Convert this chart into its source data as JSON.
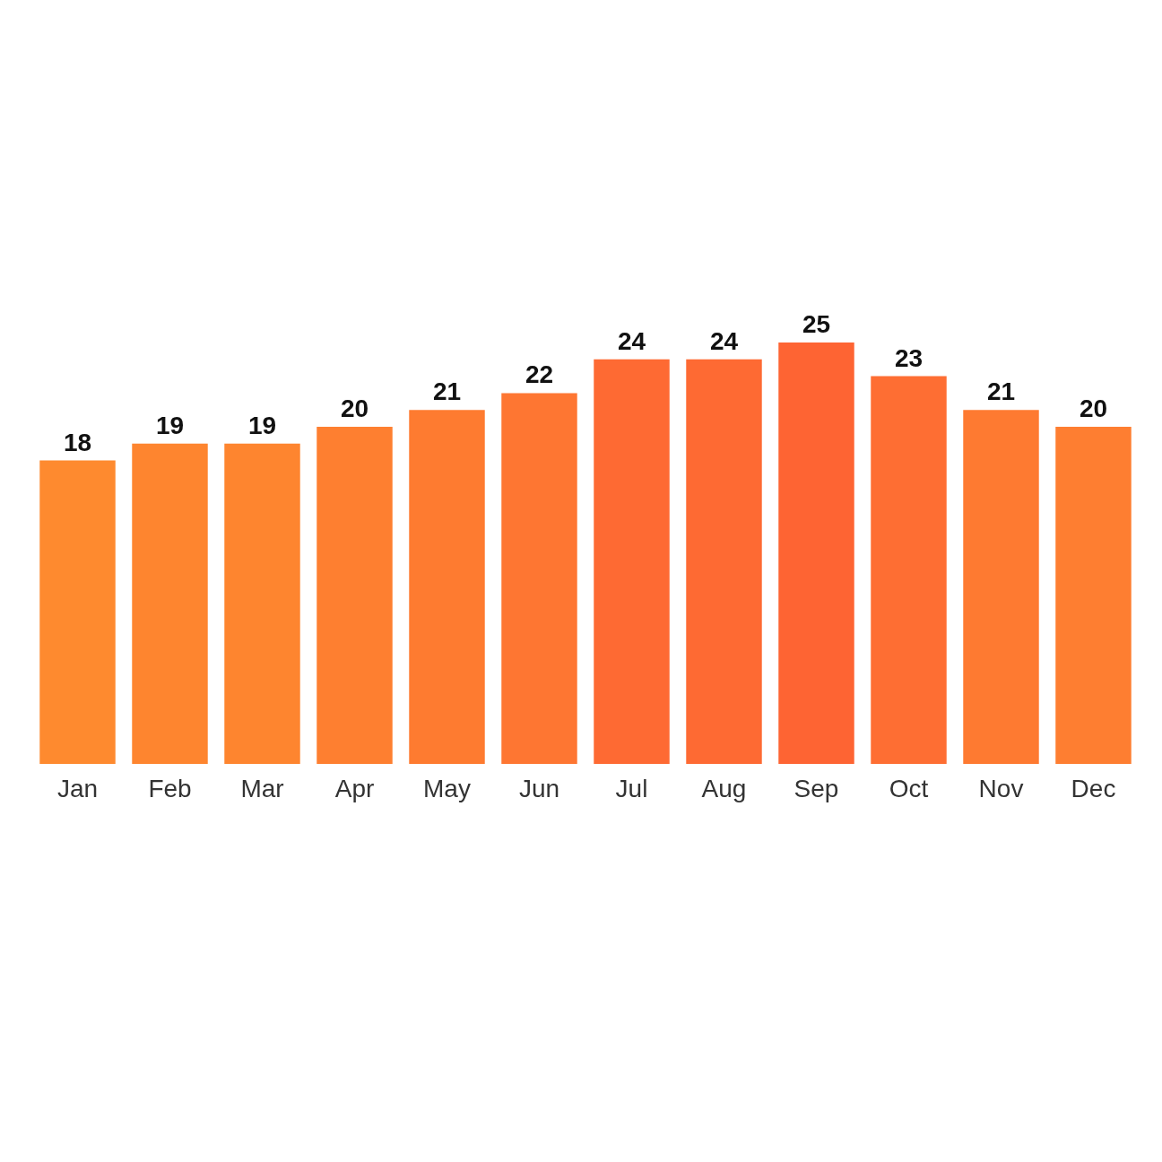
{
  "chart_data": {
    "type": "bar",
    "categories": [
      "Jan",
      "Feb",
      "Mar",
      "Apr",
      "May",
      "Jun",
      "Jul",
      "Aug",
      "Sep",
      "Oct",
      "Nov",
      "Dec"
    ],
    "values": [
      18,
      19,
      19,
      20,
      21,
      22,
      24,
      24,
      25,
      23,
      21,
      20
    ],
    "colors": [
      "#fe8a2f",
      "#fe852f",
      "#fe852f",
      "#fe7f30",
      "#fe7b30",
      "#fe7632",
      "#fe6a33",
      "#fe6a33",
      "#fe6433",
      "#fe6e33",
      "#fe7a31",
      "#fe7e31"
    ],
    "data_labels": true
  }
}
